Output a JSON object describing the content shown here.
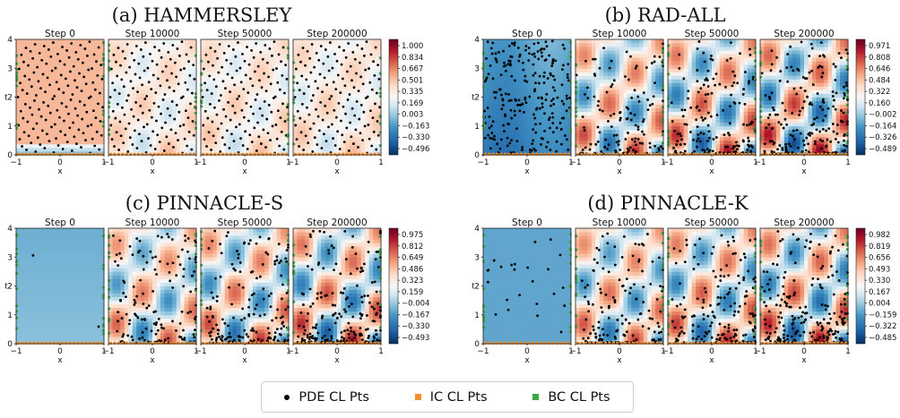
{
  "chart_data": [
    {
      "type": "heatmap",
      "title": "(a) HAMMERSLEY",
      "panel_titles": [
        "Step 0",
        "Step 10000",
        "Step 50000",
        "Step 200000"
      ],
      "xlabel": "x",
      "ylabel": "t",
      "xlim": [
        -1,
        1
      ],
      "ylim": [
        0,
        4
      ],
      "x_ticks": [
        "−1",
        "0",
        "1"
      ],
      "y_ticks": [
        "0",
        "1",
        "2",
        "3",
        "4"
      ],
      "colorbar_ticks": [
        "1.000",
        "0.834",
        "0.667",
        "0.501",
        "0.335",
        "0.169",
        "0.003",
        "−0.163",
        "−0.330",
        "−0.496"
      ],
      "colorbar_range": [
        -0.496,
        1.0
      ],
      "pde_points": "quasi-uniform Hammersley grid, ~150 points, identical in all steps",
      "colors": {
        "pde": "#000000",
        "ic": "#f28e2b",
        "bc": "#3aa845"
      }
    },
    {
      "type": "heatmap",
      "title": "(b) RAD-ALL",
      "panel_titles": [
        "Step 0",
        "Step 10000",
        "Step 50000",
        "Step 200000"
      ],
      "xlabel": "x",
      "ylabel": "t",
      "xlim": [
        -1,
        1
      ],
      "ylim": [
        0,
        4
      ],
      "x_ticks": [
        "−1",
        "0",
        "1"
      ],
      "y_ticks": [
        "0",
        "1",
        "2",
        "3",
        "4"
      ],
      "colorbar_ticks": [
        "0.971",
        "0.808",
        "0.646",
        "0.484",
        "0.322",
        "0.160",
        "−0.002",
        "−0.164",
        "−0.326",
        "−0.489"
      ],
      "colorbar_range": [
        -0.489,
        0.971
      ]
    },
    {
      "type": "heatmap",
      "title": "(c) PINNACLE-S",
      "panel_titles": [
        "Step 0",
        "Step 10000",
        "Step 50000",
        "Step 200000"
      ],
      "xlabel": "x",
      "ylabel": "t",
      "xlim": [
        -1,
        1
      ],
      "ylim": [
        0,
        4
      ],
      "x_ticks": [
        "−1",
        "0",
        "1"
      ],
      "y_ticks": [
        "0",
        "1",
        "2",
        "3",
        "4"
      ],
      "colorbar_ticks": [
        "0.975",
        "0.812",
        "0.649",
        "0.486",
        "0.323",
        "0.159",
        "−0.004",
        "−0.167",
        "−0.330",
        "−0.493"
      ],
      "colorbar_range": [
        -0.493,
        0.975
      ]
    },
    {
      "type": "heatmap",
      "title": "(d) PINNACLE-K",
      "panel_titles": [
        "Step 0",
        "Step 10000",
        "Step 50000",
        "Step 200000"
      ],
      "xlabel": "x",
      "ylabel": "t",
      "xlim": [
        -1,
        1
      ],
      "ylim": [
        0,
        4
      ],
      "x_ticks": [
        "−1",
        "0",
        "1"
      ],
      "y_ticks": [
        "0",
        "1",
        "2",
        "3",
        "4"
      ],
      "colorbar_ticks": [
        "0.982",
        "0.819",
        "0.656",
        "0.493",
        "0.330",
        "0.167",
        "0.004",
        "−0.159",
        "−0.322",
        "−0.485"
      ],
      "colorbar_range": [
        -0.485,
        0.982
      ]
    }
  ],
  "legend": {
    "items": [
      {
        "label": "PDE CL Pts",
        "color": "#000000",
        "marker": "dot"
      },
      {
        "label": "IC CL Pts",
        "color": "#f28e2b",
        "marker": "square"
      },
      {
        "label": "BC CL Pts",
        "color": "#3aa845",
        "marker": "square"
      }
    ]
  }
}
